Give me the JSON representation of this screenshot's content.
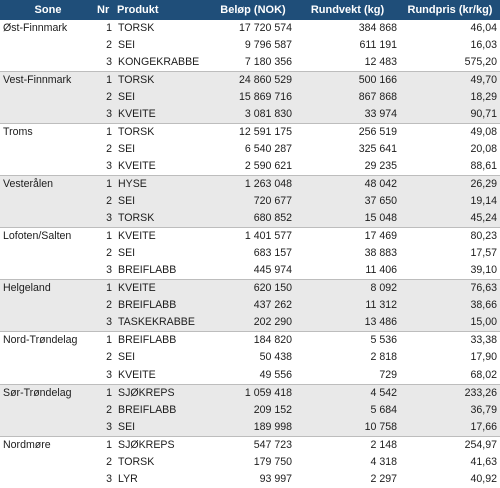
{
  "headers": {
    "sone": "Sone",
    "nr": "Nr",
    "produkt": "Produkt",
    "belop": "Beløp (NOK)",
    "rundvekt": "Rundvekt (kg)",
    "rundpris": "Rundpris (kr/kg)"
  },
  "rows": [
    {
      "sone": "Øst-Finnmark",
      "nr": "1",
      "produkt": "TORSK",
      "belop": "17 720 574",
      "rundvekt": "384 868",
      "rundpris": "46,04"
    },
    {
      "sone": "",
      "nr": "2",
      "produkt": "SEI",
      "belop": "9 796 587",
      "rundvekt": "611 191",
      "rundpris": "16,03"
    },
    {
      "sone": "",
      "nr": "3",
      "produkt": "KONGEKRABBE",
      "belop": "7 180 356",
      "rundvekt": "12 483",
      "rundpris": "575,20"
    },
    {
      "sone": "Vest-Finnmark",
      "nr": "1",
      "produkt": "TORSK",
      "belop": "24 860 529",
      "rundvekt": "500 166",
      "rundpris": "49,70"
    },
    {
      "sone": "",
      "nr": "2",
      "produkt": "SEI",
      "belop": "15 869 716",
      "rundvekt": "867 868",
      "rundpris": "18,29"
    },
    {
      "sone": "",
      "nr": "3",
      "produkt": "KVEITE",
      "belop": "3 081 830",
      "rundvekt": "33 974",
      "rundpris": "90,71"
    },
    {
      "sone": "Troms",
      "nr": "1",
      "produkt": "TORSK",
      "belop": "12 591 175",
      "rundvekt": "256 519",
      "rundpris": "49,08"
    },
    {
      "sone": "",
      "nr": "2",
      "produkt": "SEI",
      "belop": "6 540 287",
      "rundvekt": "325 641",
      "rundpris": "20,08"
    },
    {
      "sone": "",
      "nr": "3",
      "produkt": "KVEITE",
      "belop": "2 590 621",
      "rundvekt": "29 235",
      "rundpris": "88,61"
    },
    {
      "sone": "Vesterålen",
      "nr": "1",
      "produkt": "HYSE",
      "belop": "1 263 048",
      "rundvekt": "48 042",
      "rundpris": "26,29"
    },
    {
      "sone": "",
      "nr": "2",
      "produkt": "SEI",
      "belop": "720 677",
      "rundvekt": "37 650",
      "rundpris": "19,14"
    },
    {
      "sone": "",
      "nr": "3",
      "produkt": "TORSK",
      "belop": "680 852",
      "rundvekt": "15 048",
      "rundpris": "45,24"
    },
    {
      "sone": "Lofoten/Salten",
      "nr": "1",
      "produkt": "KVEITE",
      "belop": "1 401 577",
      "rundvekt": "17 469",
      "rundpris": "80,23"
    },
    {
      "sone": "",
      "nr": "2",
      "produkt": "SEI",
      "belop": "683 157",
      "rundvekt": "38 883",
      "rundpris": "17,57"
    },
    {
      "sone": "",
      "nr": "3",
      "produkt": "BREIFLABB",
      "belop": "445 974",
      "rundvekt": "11 406",
      "rundpris": "39,10"
    },
    {
      "sone": "Helgeland",
      "nr": "1",
      "produkt": "KVEITE",
      "belop": "620 150",
      "rundvekt": "8 092",
      "rundpris": "76,63"
    },
    {
      "sone": "",
      "nr": "2",
      "produkt": "BREIFLABB",
      "belop": "437 262",
      "rundvekt": "11 312",
      "rundpris": "38,66"
    },
    {
      "sone": "",
      "nr": "3",
      "produkt": "TASKEKRABBE",
      "belop": "202 290",
      "rundvekt": "13 486",
      "rundpris": "15,00"
    },
    {
      "sone": "Nord-Trøndelag",
      "nr": "1",
      "produkt": "BREIFLABB",
      "belop": "184 820",
      "rundvekt": "5 536",
      "rundpris": "33,38"
    },
    {
      "sone": "",
      "nr": "2",
      "produkt": "SEI",
      "belop": "50 438",
      "rundvekt": "2 818",
      "rundpris": "17,90"
    },
    {
      "sone": "",
      "nr": "3",
      "produkt": "KVEITE",
      "belop": "49 556",
      "rundvekt": "729",
      "rundpris": "68,02"
    },
    {
      "sone": "Sør-Trøndelag",
      "nr": "1",
      "produkt": "SJØKREPS",
      "belop": "1 059 418",
      "rundvekt": "4 542",
      "rundpris": "233,26"
    },
    {
      "sone": "",
      "nr": "2",
      "produkt": "BREIFLABB",
      "belop": "209 152",
      "rundvekt": "5 684",
      "rundpris": "36,79"
    },
    {
      "sone": "",
      "nr": "3",
      "produkt": "SEI",
      "belop": "189 998",
      "rundvekt": "10 758",
      "rundpris": "17,66"
    },
    {
      "sone": "Nordmøre",
      "nr": "1",
      "produkt": "SJØKREPS",
      "belop": "547 723",
      "rundvekt": "2 148",
      "rundpris": "254,97"
    },
    {
      "sone": "",
      "nr": "2",
      "produkt": "TORSK",
      "belop": "179 750",
      "rundvekt": "4 318",
      "rundpris": "41,63"
    },
    {
      "sone": "",
      "nr": "3",
      "produkt": "LYR",
      "belop": "93 997",
      "rundvekt": "2 297",
      "rundpris": "40,92"
    }
  ]
}
